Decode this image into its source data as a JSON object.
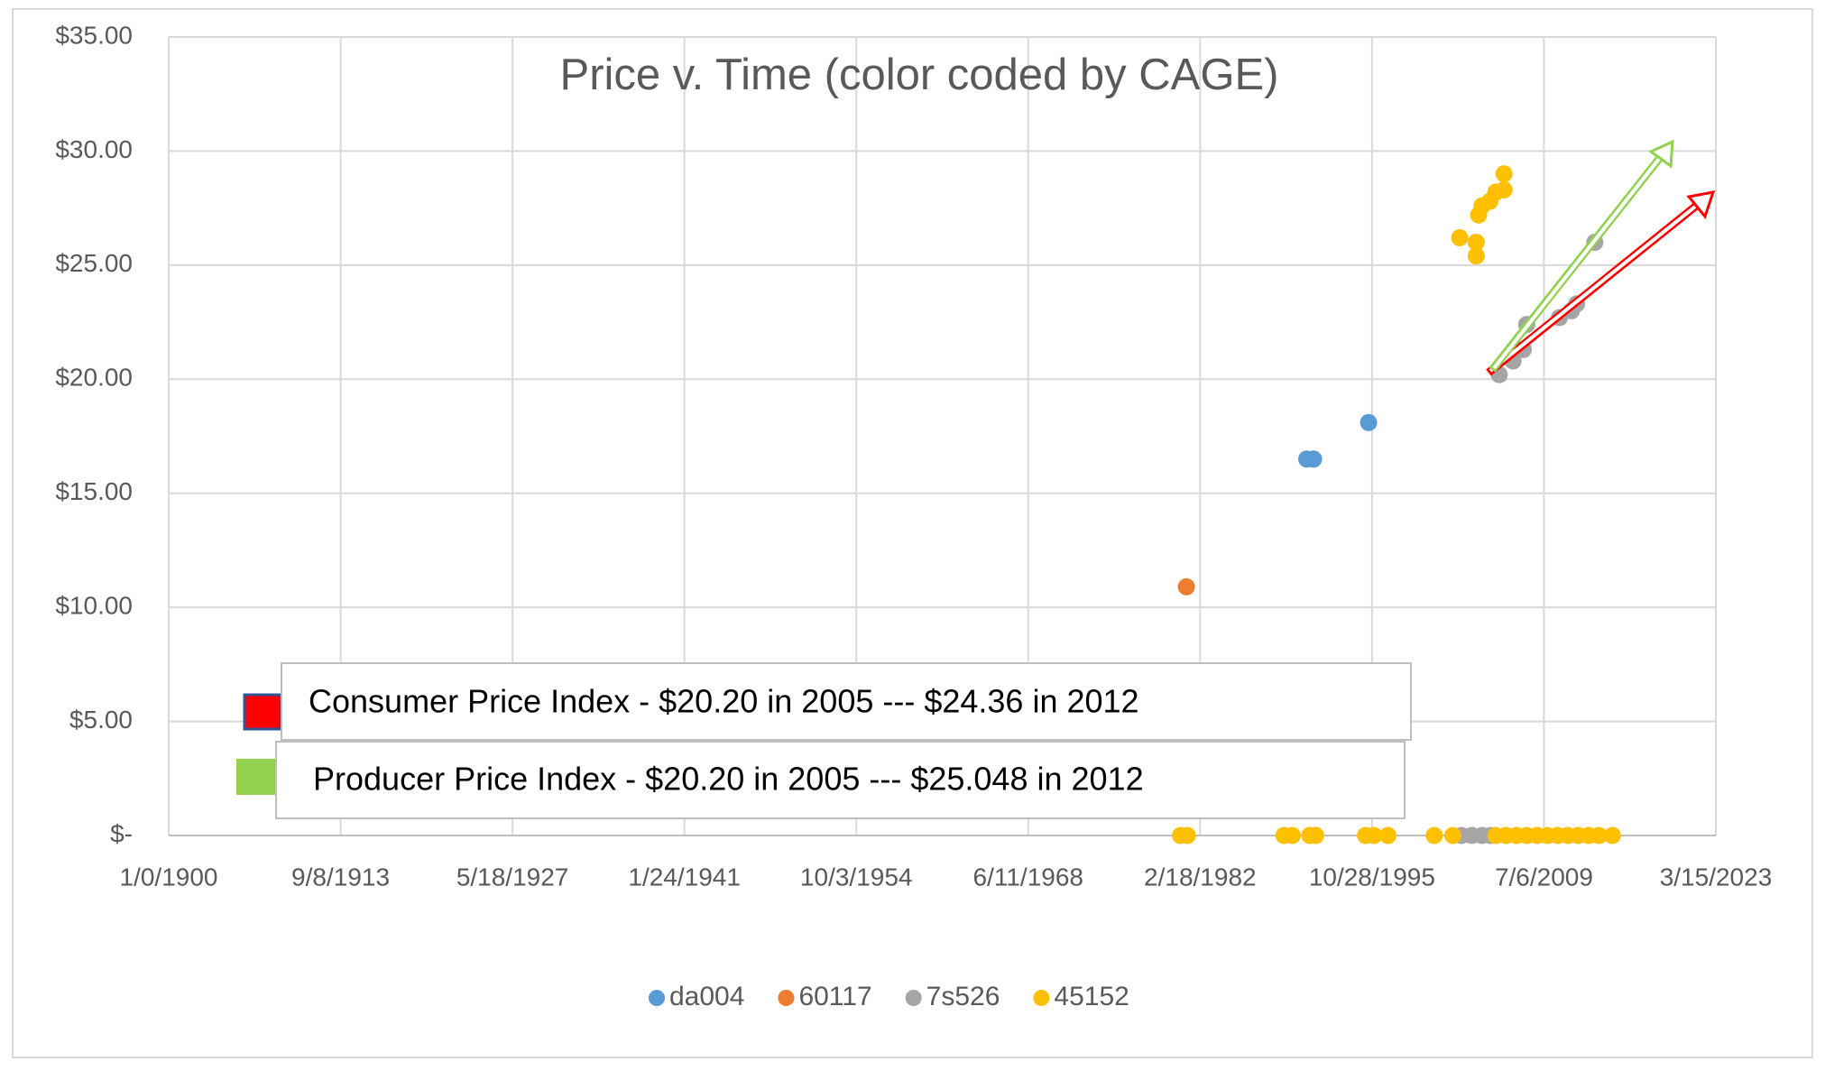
{
  "chart_data": {
    "type": "scatter",
    "title": "Price v. Time (color coded by CAGE)",
    "xlim": [
      0,
      45000
    ],
    "xticks": [
      {
        "value": 0,
        "label": "1/0/1900"
      },
      {
        "value": 5000,
        "label": "9/8/1913"
      },
      {
        "value": 10000,
        "label": "5/18/1927"
      },
      {
        "value": 15000,
        "label": "1/24/1941"
      },
      {
        "value": 20000,
        "label": "10/3/1954"
      },
      {
        "value": 25000,
        "label": "6/11/1968"
      },
      {
        "value": 30000,
        "label": "2/18/1982"
      },
      {
        "value": 35000,
        "label": "10/28/1995"
      },
      {
        "value": 40000,
        "label": "7/6/2009"
      },
      {
        "value": 45000,
        "label": "3/15/2023"
      }
    ],
    "ylim": [
      0,
      35
    ],
    "yticks": [
      {
        "value": 0,
        "label": "$-"
      },
      {
        "value": 5,
        "label": "$5.00"
      },
      {
        "value": 10,
        "label": "$10.00"
      },
      {
        "value": 15,
        "label": "$15.00"
      },
      {
        "value": 20,
        "label": "$20.00"
      },
      {
        "value": 25,
        "label": "$25.00"
      },
      {
        "value": 30,
        "label": "$30.00"
      },
      {
        "value": 35,
        "label": "$35.00"
      }
    ],
    "grid": true,
    "legend": "bottom",
    "series": [
      {
        "name": "da004",
        "color": "#5b9bd5",
        "x": [
          33100,
          33300,
          34900
        ],
        "values": [
          16.5,
          16.5,
          18.1
        ]
      },
      {
        "name": "60117",
        "color": "#ed7d31",
        "x": [
          29600
        ],
        "values": [
          10.9
        ]
      },
      {
        "name": "7s526",
        "color": "#a5a5a5",
        "x": [
          37600,
          37900,
          38200,
          38450,
          38700,
          39100,
          39400,
          39500,
          40450,
          40800,
          40950,
          41480
        ],
        "values": [
          0,
          0,
          0,
          0,
          20.2,
          20.8,
          21.3,
          22.4,
          22.7,
          23.0,
          23.3,
          26.0
        ]
      },
      {
        "name": "45152",
        "color": "#ffc000",
        "x": [
          29430,
          29630,
          32440,
          32680,
          33190,
          33360,
          34810,
          35050,
          35460,
          36810,
          37350,
          38600,
          38900,
          39200,
          39500,
          39800,
          40100,
          40400,
          40700,
          41000,
          41300,
          41600,
          41990,
          37550,
          38030,
          38030,
          38100,
          38200,
          38430,
          38600,
          38840,
          38840
        ],
        "values": [
          0,
          0,
          0,
          0,
          0,
          0,
          0,
          0,
          0,
          0,
          0,
          0,
          0,
          0,
          0,
          0,
          0,
          0,
          0,
          0,
          0,
          0,
          0,
          26.2,
          25.4,
          26.0,
          27.2,
          27.6,
          27.8,
          28.2,
          28.3,
          29.0
        ]
      }
    ],
    "annotations": [
      "Consumer Price Index - $20.20 in 2005 --- $24.36 in 2012",
      "Producer Price Index - $20.20 in 2005 --- $25.048 in 2012"
    ]
  }
}
